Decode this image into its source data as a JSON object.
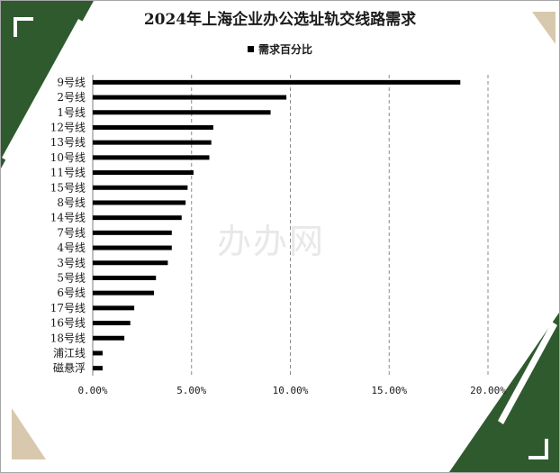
{
  "title": "2024年上海企业办公选址轨交线路需求",
  "watermark": "办办网",
  "colors": {
    "decor_green": "#2f5a2e",
    "decor_tan": "#d8c8ad",
    "bar": "#000000",
    "grid": "#8c8c8c"
  },
  "chart_data": {
    "type": "bar",
    "orientation": "horizontal",
    "legend_position": "top",
    "legend": [
      "需求百分比"
    ],
    "categories": [
      "9号线",
      "2号线",
      "1号线",
      "12号线",
      "13号线",
      "10号线",
      "11号线",
      "15号线",
      "8号线",
      "14号线",
      "7号线",
      "4号线",
      "3号线",
      "5号线",
      "6号线",
      "17号线",
      "16号线",
      "18号线",
      "浦江线",
      "磁悬浮"
    ],
    "series": [
      {
        "name": "需求百分比",
        "values": [
          18.6,
          9.8,
          9.0,
          6.1,
          6.0,
          5.9,
          5.1,
          4.8,
          4.7,
          4.5,
          4.0,
          4.0,
          3.8,
          3.2,
          3.1,
          2.1,
          1.9,
          1.6,
          0.5,
          0.5
        ]
      }
    ],
    "xlim": [
      0,
      20
    ],
    "xticks": [
      0,
      5,
      10,
      15,
      20
    ],
    "xtick_labels": [
      "0.00%",
      "5.00%",
      "10.00%",
      "15.00%",
      "20.00%"
    ],
    "grid": "vertical-dashed"
  }
}
